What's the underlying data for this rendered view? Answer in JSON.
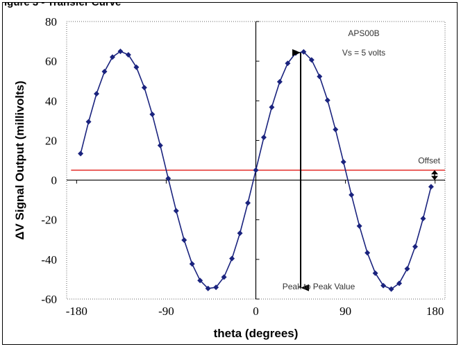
{
  "figure_caption": "igure 3 - Transfer Curve",
  "chart_data": {
    "type": "scatter",
    "title": "",
    "xlabel": "theta (degrees)",
    "ylabel": "ΔV Signal Output (millivolts)",
    "xlim": [
      -190,
      190
    ],
    "ylim": [
      -60,
      80
    ],
    "xticks": [
      -180,
      -90,
      0,
      90,
      180
    ],
    "yticks": [
      -60,
      -40,
      -20,
      0,
      20,
      40,
      60,
      80
    ],
    "grid": false,
    "legend": "none",
    "series": [
      {
        "color": "#1a237e",
        "marker": "diamond",
        "x_start": -176,
        "x_end": 176,
        "x_step": 8,
        "offset_mV": 5,
        "amplitude_mV": 60,
        "period_deg": 180,
        "peaks": [
          [
            -135,
            65
          ],
          [
            45,
            65
          ]
        ],
        "troughs": [
          [
            -45,
            -55
          ],
          [
            135,
            -55
          ]
        ]
      }
    ],
    "offset_line": {
      "y": 5,
      "color": "#e53935"
    },
    "peak_to_peak_arrow": {
      "x": 45,
      "y_top": 65,
      "y_bottom": -55
    },
    "annotations": {
      "device": "APS00B",
      "supply": "Vs = 5 volts",
      "offset": "Offset",
      "peak_to_peak": "Peak to Peak Value"
    }
  }
}
